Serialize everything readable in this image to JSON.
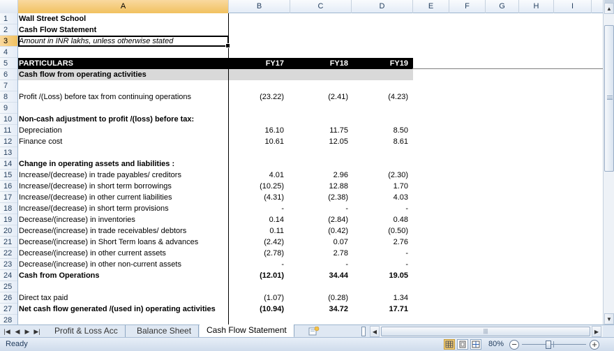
{
  "columns": [
    "A",
    "B",
    "C",
    "D",
    "E",
    "F",
    "G",
    "H",
    "I"
  ],
  "selected_column": "A",
  "selected_row": "3",
  "rows": [
    {
      "n": "1",
      "a": "Wall Street School",
      "style": "bold"
    },
    {
      "n": "2",
      "a": "Cash Flow Statement",
      "style": "bold"
    },
    {
      "n": "3",
      "a": "Amount in INR lakhs, unless otherwise stated",
      "style": "ital"
    },
    {
      "n": "4",
      "a": ""
    },
    {
      "n": "5",
      "a": "PARTICULARS",
      "b": "FY17",
      "c": "FY18",
      "d": "FY19",
      "style": "dark"
    },
    {
      "n": "6",
      "a": "Cash flow from operating activities",
      "style": "grey"
    },
    {
      "n": "7",
      "a": ""
    },
    {
      "n": "8",
      "a": "Profit /(Loss) before tax from continuing operations",
      "b": "(23.22)",
      "c": "(2.41)",
      "d": "(4.23)"
    },
    {
      "n": "9",
      "a": ""
    },
    {
      "n": "10",
      "a": "Non-cash adjustment to profit /(loss) before tax:",
      "style": "bold"
    },
    {
      "n": "11",
      "a": "Depreciation",
      "b": "16.10",
      "c": "11.75",
      "d": "8.50"
    },
    {
      "n": "12",
      "a": "Finance cost",
      "b": "10.61",
      "c": "12.05",
      "d": "8.61"
    },
    {
      "n": "13",
      "a": ""
    },
    {
      "n": "14",
      "a": "Change in operating assets and liabilities :",
      "style": "bold"
    },
    {
      "n": "15",
      "a": "Increase/(decrease) in trade payables/ creditors",
      "b": "4.01",
      "c": "2.96",
      "d": "(2.30)"
    },
    {
      "n": "16",
      "a": "Increase/(decrease) in short term borrowings",
      "b": "(10.25)",
      "c": "12.88",
      "d": "1.70"
    },
    {
      "n": "17",
      "a": "Increase/(decrease) in other current liabilities",
      "b": "(4.31)",
      "c": "(2.38)",
      "d": "4.03"
    },
    {
      "n": "18",
      "a": "Increase/(decrease) in short term provisions",
      "b": "-",
      "c": "-",
      "d": "-"
    },
    {
      "n": "19",
      "a": "Decrease/(increase) in inventories",
      "b": "0.14",
      "c": "(2.84)",
      "d": "0.48"
    },
    {
      "n": "20",
      "a": "Decrease/(increase) in trade receivables/ debtors",
      "b": "0.11",
      "c": "(0.42)",
      "d": "(0.50)"
    },
    {
      "n": "21",
      "a": "Decrease/(increase) in Short Term loans & advances",
      "b": "(2.42)",
      "c": "0.07",
      "d": "2.76"
    },
    {
      "n": "22",
      "a": "Decrease/(increase) in other current assets",
      "b": "(2.78)",
      "c": "2.78",
      "d": "-"
    },
    {
      "n": "23",
      "a": "Decrease/(increase) in other non-current assets",
      "b": "-",
      "c": "-",
      "d": "-"
    },
    {
      "n": "24",
      "a": "Cash from Operations",
      "b": "(12.01)",
      "c": "34.44",
      "d": "19.05",
      "style": "bold"
    },
    {
      "n": "25",
      "a": ""
    },
    {
      "n": "26",
      "a": "Direct tax paid",
      "b": "(1.07)",
      "c": "(0.28)",
      "d": "1.34"
    },
    {
      "n": "27",
      "a": "Net cash flow generated /(used in) operating activities",
      "b": "(10.94)",
      "c": "34.72",
      "d": "17.71",
      "style": "bold"
    },
    {
      "n": "28",
      "a": ""
    }
  ],
  "sheet_tabs": [
    {
      "label": "Profit & Loss Acc",
      "active": false
    },
    {
      "label": "Balance Sheet",
      "active": false
    },
    {
      "label": "Cash Flow Statement",
      "active": true
    }
  ],
  "status": {
    "ready": "Ready",
    "zoom": "80%"
  },
  "icons": {
    "nav_first": "first-sheet-icon",
    "nav_prev": "prev-sheet-icon",
    "nav_next": "next-sheet-icon",
    "nav_last": "last-sheet-icon",
    "new_sheet": "insert-sheet-icon"
  }
}
